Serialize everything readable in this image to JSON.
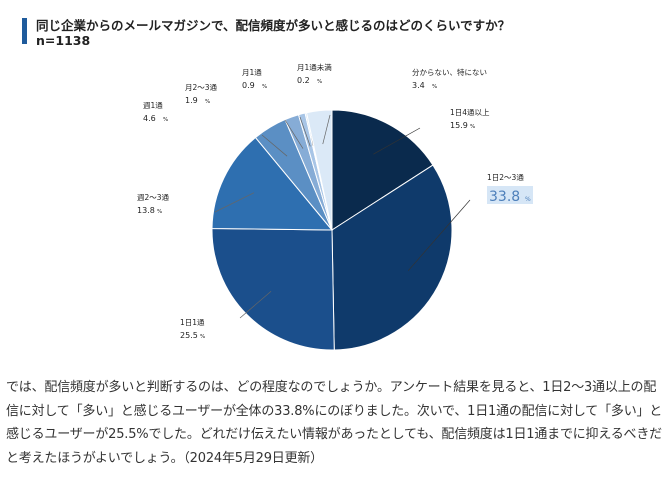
{
  "header": {
    "title": "同じ企業からのメールマガジンで、配信頻度が多いと感じるのはどのくらいですか？",
    "subtitle": "n=1138"
  },
  "chart_data": {
    "type": "pie",
    "title": "同じ企業からのメールマガジンで、配信頻度が多いと感じるのはどのくらいですか？",
    "subtitle": "n=1138",
    "unit": "%",
    "slices": [
      {
        "label": "1日4通以上",
        "value": 15.9,
        "color": "#0a2a4d"
      },
      {
        "label": "1日2〜3通",
        "value": 33.8,
        "color": "#0f3a6b",
        "highlight": true
      },
      {
        "label": "1日1通",
        "value": 25.5,
        "color": "#1b4f8c"
      },
      {
        "label": "週2〜3通",
        "value": 13.8,
        "color": "#2e6fb0"
      },
      {
        "label": "週1通",
        "value": 4.6,
        "color": "#5b8fc4"
      },
      {
        "label": "月2〜3通",
        "value": 1.9,
        "color": "#86acd6"
      },
      {
        "label": "月1通",
        "value": 0.9,
        "color": "#a8c5e6"
      },
      {
        "label": "月1通未満",
        "value": 0.2,
        "color": "#c6dcf1"
      },
      {
        "label": "分からない、特にない",
        "value": 3.4,
        "color": "#dbe9f7"
      }
    ],
    "highlight_color": "#4d7fba"
  },
  "paragraph": "では、配信頻度が多いと判断するのは、どの程度なのでしょうか。アンケート結果を見ると、1日2〜3通以上の配信に対して「多い」と感じるユーザーが全体の33.8%にのぼりました。次いで、1日1通の配信に対して「多い」と感じるユーザーが25.5%でした。どれだけ伝えたい情報があったとしても、配信頻度は1日1通までに抑えるべきだと考えたほうがよいでしょう。（2024年5月29日更新）"
}
